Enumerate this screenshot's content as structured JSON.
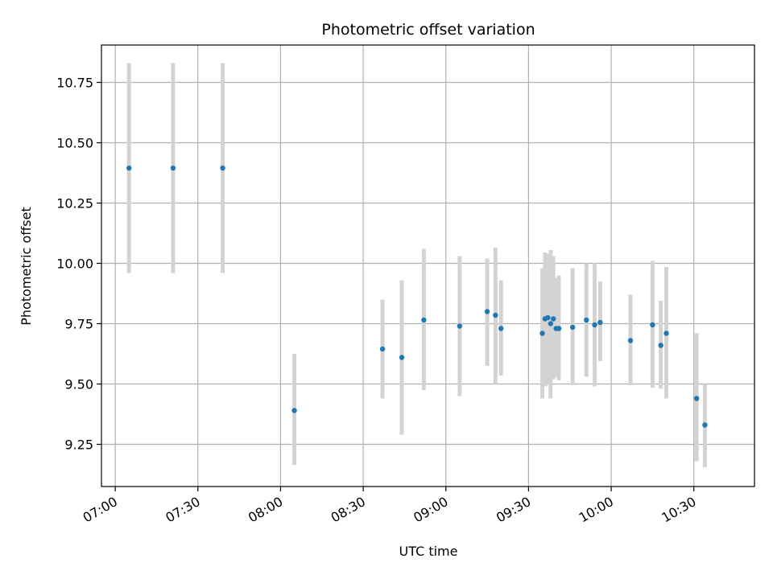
{
  "chart_data": {
    "type": "scatter",
    "title": "Photometric offset variation",
    "xlabel": "UTC time",
    "ylabel": "Photometric offset",
    "x_type": "time",
    "xlim": [
      "06:55",
      "10:52"
    ],
    "ylim": [
      9.075,
      10.905
    ],
    "x_ticks": [
      "07:00",
      "07:30",
      "08:00",
      "08:30",
      "09:00",
      "09:30",
      "10:00",
      "10:30"
    ],
    "y_ticks": [
      9.25,
      9.5,
      9.75,
      10.0,
      10.25,
      10.5,
      10.75
    ],
    "y_tick_labels": [
      "9.25",
      "9.50",
      "9.75",
      "10.00",
      "10.25",
      "10.50",
      "10.75"
    ],
    "grid": true,
    "colors": {
      "point": "#1f77b4",
      "errorbar": "#d3d3d3",
      "grid": "#b0b0b0"
    },
    "points": [
      {
        "time": "07:05",
        "value": 10.395,
        "err_low": 9.96,
        "err_high": 10.83
      },
      {
        "time": "07:21",
        "value": 10.395,
        "err_low": 9.96,
        "err_high": 10.83
      },
      {
        "time": "07:39",
        "value": 10.395,
        "err_low": 9.96,
        "err_high": 10.83
      },
      {
        "time": "08:05",
        "value": 9.39,
        "err_low": 9.165,
        "err_high": 9.625
      },
      {
        "time": "08:37",
        "value": 9.645,
        "err_low": 9.44,
        "err_high": 9.85
      },
      {
        "time": "08:44",
        "value": 9.61,
        "err_low": 9.29,
        "err_high": 9.93
      },
      {
        "time": "08:52",
        "value": 9.765,
        "err_low": 9.475,
        "err_high": 10.06
      },
      {
        "time": "09:05",
        "value": 9.74,
        "err_low": 9.45,
        "err_high": 10.03
      },
      {
        "time": "09:15",
        "value": 9.8,
        "err_low": 9.575,
        "err_high": 10.02
      },
      {
        "time": "09:18",
        "value": 9.785,
        "err_low": 9.5,
        "err_high": 10.065
      },
      {
        "time": "09:20",
        "value": 9.73,
        "err_low": 9.535,
        "err_high": 9.93
      },
      {
        "time": "09:35",
        "value": 9.71,
        "err_low": 9.44,
        "err_high": 9.98
      },
      {
        "time": "09:36",
        "value": 9.77,
        "err_low": 9.49,
        "err_high": 10.045
      },
      {
        "time": "09:37",
        "value": 9.775,
        "err_low": 9.5,
        "err_high": 10.04
      },
      {
        "time": "09:38",
        "value": 9.75,
        "err_low": 9.44,
        "err_high": 10.055
      },
      {
        "time": "09:39",
        "value": 9.77,
        "err_low": 9.52,
        "err_high": 10.03
      },
      {
        "time": "09:40",
        "value": 9.73,
        "err_low": 9.53,
        "err_high": 9.94
      },
      {
        "time": "09:41",
        "value": 9.73,
        "err_low": 9.515,
        "err_high": 9.95
      },
      {
        "time": "09:46",
        "value": 9.735,
        "err_low": 9.495,
        "err_high": 9.98
      },
      {
        "time": "09:51",
        "value": 9.765,
        "err_low": 9.53,
        "err_high": 10.0
      },
      {
        "time": "09:54",
        "value": 9.745,
        "err_low": 9.49,
        "err_high": 10.0
      },
      {
        "time": "09:56",
        "value": 9.755,
        "err_low": 9.595,
        "err_high": 9.925
      },
      {
        "time": "10:07",
        "value": 9.68,
        "err_low": 9.495,
        "err_high": 9.87
      },
      {
        "time": "10:15",
        "value": 9.745,
        "err_low": 9.485,
        "err_high": 10.01
      },
      {
        "time": "10:18",
        "value": 9.66,
        "err_low": 9.48,
        "err_high": 9.845
      },
      {
        "time": "10:20",
        "value": 9.71,
        "err_low": 9.44,
        "err_high": 9.985
      },
      {
        "time": "10:31",
        "value": 9.44,
        "err_low": 9.18,
        "err_high": 9.71
      },
      {
        "time": "10:34",
        "value": 9.33,
        "err_low": 9.155,
        "err_high": 9.5
      }
    ]
  }
}
